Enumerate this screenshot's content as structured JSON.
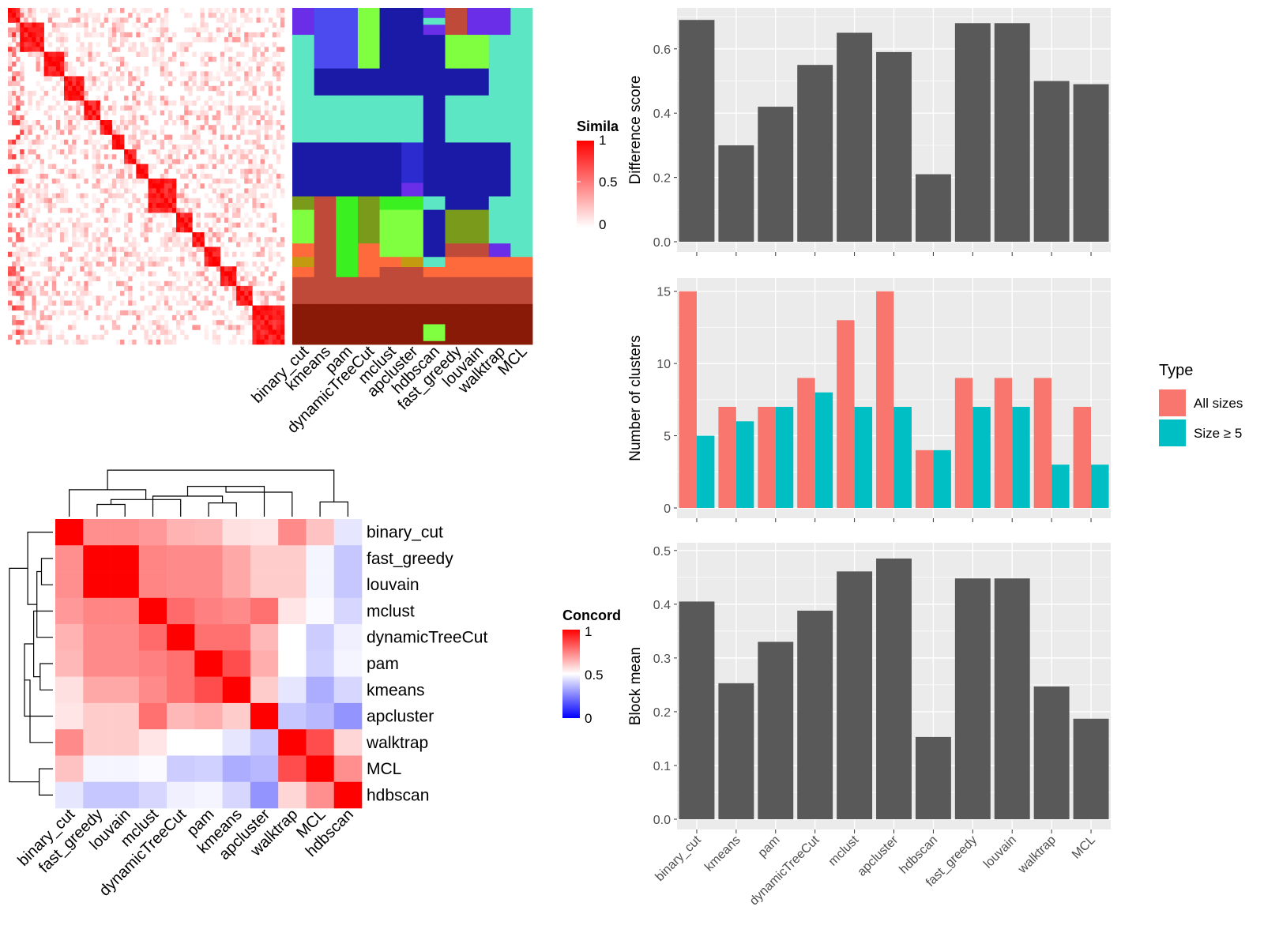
{
  "methods_top": [
    "binary_cut",
    "kmeans",
    "pam",
    "dynamicTreeCut",
    "mclust",
    "apcluster",
    "hdbscan",
    "fast_greedy",
    "louvain",
    "walktrap",
    "MCL"
  ],
  "heatmap_similarity": {
    "legend_title": "Simila",
    "legend_ticks": [
      "1",
      "0.5",
      "0"
    ],
    "colors": {
      "high": "#FF0000",
      "low": "#FFFFFF"
    },
    "blocks": [
      3,
      6,
      5,
      5,
      4,
      3,
      3,
      3,
      3,
      7,
      4,
      3,
      4,
      4,
      4,
      8
    ]
  },
  "cluster_assignment": {
    "palette": [
      "#5DE6C4",
      "#6A2EE8",
      "#4B4BEF",
      "#1A1AA6",
      "#2B2BD0",
      "#7FFF40",
      "#3AF020",
      "#7A9A1C",
      "#FF6A3C",
      "#C04A3A",
      "#8A1A08",
      "#C49A10",
      "#00B4B0"
    ]
  },
  "concordance": {
    "legend_title": "Concord",
    "legend_ticks": [
      "1",
      "0.5",
      "0"
    ],
    "colors": {
      "high": "#FF0000",
      "mid": "#FFFFFF",
      "low": "#0000FF"
    },
    "order": [
      "binary_cut",
      "fast_greedy",
      "louvain",
      "mclust",
      "dynamicTreeCut",
      "pam",
      "kmeans",
      "apcluster",
      "walktrap",
      "MCL",
      "hdbscan"
    ],
    "matrix": [
      [
        1.0,
        0.72,
        0.72,
        0.7,
        0.65,
        0.64,
        0.56,
        0.55,
        0.73,
        0.62,
        0.45
      ],
      [
        0.72,
        1.0,
        1.0,
        0.74,
        0.73,
        0.73,
        0.67,
        0.6,
        0.6,
        0.48,
        0.39
      ],
      [
        0.72,
        1.0,
        1.0,
        0.74,
        0.73,
        0.73,
        0.67,
        0.6,
        0.6,
        0.48,
        0.39
      ],
      [
        0.7,
        0.74,
        0.74,
        1.0,
        0.79,
        0.75,
        0.73,
        0.78,
        0.55,
        0.49,
        0.42
      ],
      [
        0.65,
        0.73,
        0.73,
        0.79,
        1.0,
        0.78,
        0.78,
        0.64,
        0.5,
        0.4,
        0.47
      ],
      [
        0.64,
        0.73,
        0.73,
        0.75,
        0.78,
        1.0,
        0.85,
        0.66,
        0.5,
        0.41,
        0.48
      ],
      [
        0.56,
        0.67,
        0.67,
        0.73,
        0.78,
        0.85,
        1.0,
        0.6,
        0.45,
        0.34,
        0.42
      ],
      [
        0.55,
        0.6,
        0.6,
        0.78,
        0.64,
        0.66,
        0.6,
        1.0,
        0.39,
        0.36,
        0.29
      ],
      [
        0.73,
        0.6,
        0.6,
        0.55,
        0.5,
        0.5,
        0.45,
        0.39,
        1.0,
        0.85,
        0.58
      ],
      [
        0.62,
        0.48,
        0.48,
        0.49,
        0.4,
        0.41,
        0.34,
        0.36,
        0.85,
        1.0,
        0.72
      ],
      [
        0.45,
        0.39,
        0.39,
        0.42,
        0.47,
        0.48,
        0.42,
        0.29,
        0.58,
        0.72,
        1.0
      ]
    ]
  },
  "bar_panels": {
    "categories": [
      "binary_cut",
      "kmeans",
      "pam",
      "dynamicTreeCut",
      "mclust",
      "apcluster",
      "hdbscan",
      "fast_greedy",
      "louvain",
      "walktrap",
      "MCL"
    ],
    "bar_color": "#595959",
    "panel_bg": "#EBEBEB",
    "legend_title": "Type",
    "legend_items": [
      {
        "label": "All sizes",
        "color": "#F8766D"
      },
      {
        "label": "Size ≥ 5",
        "color": "#00BFC4"
      }
    ]
  },
  "chart_data": [
    {
      "type": "bar",
      "title": "",
      "xlabel": "",
      "ylabel": "Difference score",
      "categories": [
        "binary_cut",
        "kmeans",
        "pam",
        "dynamicTreeCut",
        "mclust",
        "apcluster",
        "hdbscan",
        "fast_greedy",
        "louvain",
        "walktrap",
        "MCL"
      ],
      "values": [
        0.69,
        0.3,
        0.42,
        0.55,
        0.65,
        0.59,
        0.21,
        0.68,
        0.68,
        0.5,
        0.49
      ],
      "ylim": [
        0,
        0.72
      ],
      "yticks": [
        0.0,
        0.2,
        0.4,
        0.6
      ],
      "ytick_labels": [
        "0.0",
        "0.2",
        "0.4",
        "0.6"
      ],
      "grid": true
    },
    {
      "type": "bar",
      "title": "",
      "xlabel": "",
      "ylabel": "Number of clusters",
      "categories": [
        "binary_cut",
        "kmeans",
        "pam",
        "dynamicTreeCut",
        "mclust",
        "apcluster",
        "hdbscan",
        "fast_greedy",
        "louvain",
        "walktrap",
        "MCL"
      ],
      "series": [
        {
          "name": "All sizes",
          "values": [
            15,
            7,
            7,
            9,
            13,
            15,
            4,
            9,
            9,
            9,
            7
          ]
        },
        {
          "name": "Size ≥ 5",
          "values": [
            5,
            6,
            7,
            8,
            7,
            7,
            4,
            7,
            7,
            3,
            3
          ]
        }
      ],
      "ylim": [
        0,
        15.75
      ],
      "yticks": [
        0,
        5,
        10,
        15
      ],
      "ytick_labels": [
        "0",
        "5",
        "10",
        "15"
      ],
      "legend_position": "right",
      "grid": true
    },
    {
      "type": "bar",
      "title": "",
      "xlabel": "",
      "ylabel": "Block mean",
      "categories": [
        "binary_cut",
        "kmeans",
        "pam",
        "dynamicTreeCut",
        "mclust",
        "apcluster",
        "hdbscan",
        "fast_greedy",
        "louvain",
        "walktrap",
        "MCL"
      ],
      "values": [
        0.405,
        0.253,
        0.33,
        0.388,
        0.461,
        0.485,
        0.153,
        0.448,
        0.448,
        0.247,
        0.187
      ],
      "ylim": [
        0,
        0.51
      ],
      "yticks": [
        0.0,
        0.1,
        0.2,
        0.3,
        0.4,
        0.5
      ],
      "ytick_labels": [
        "0.0",
        "0.1",
        "0.2",
        "0.3",
        "0.4",
        "0.5"
      ],
      "grid": true
    }
  ]
}
